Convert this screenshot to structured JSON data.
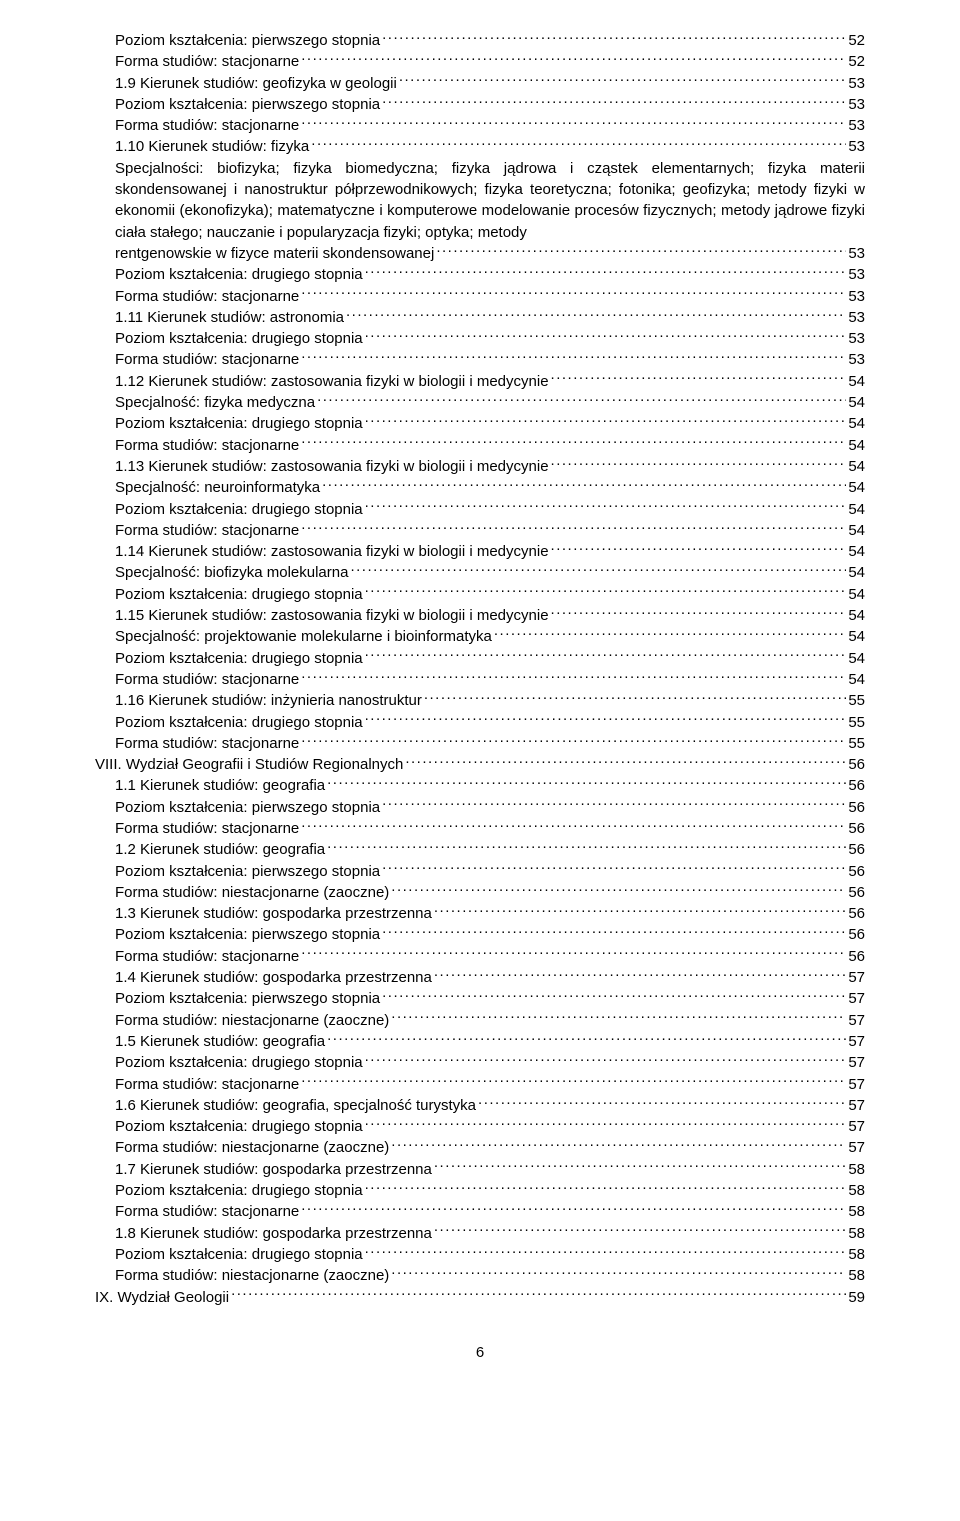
{
  "text_color": "#000000",
  "background_color": "#ffffff",
  "font_family": "Arial",
  "font_size_pt": 11,
  "page_number": "6",
  "wrap_entry": {
    "indent": 1,
    "head_prefix": "",
    "body_text": "Specjalności: biofizyka; fizyka biomedyczna; fizyka jądrowa i cząstek elementarnych; fizyka materii skondensowanej i nanostruktur półprzewodnikowych; fizyka teoretyczna; fotonika; geofizyka; metody fizyki w ekonomii (ekonofizyka); matematyczne i komputerowe modelowanie procesów fizycznych; metody jądrowe fizyki ciała stałego; nauczanie i popularyzacja fizyki; optyka; metody ",
    "last_line_text": "rentgenowskie w fizyce materii skondensowanej",
    "page": "53"
  },
  "entries": [
    {
      "indent": 1,
      "text": "Poziom kształcenia: pierwszego stopnia",
      "page": "52"
    },
    {
      "indent": 1,
      "text": "Forma studiów: stacjonarne",
      "page": "52"
    },
    {
      "indent": 1,
      "text": "1.9 Kierunek studiów: geofizyka w geologii",
      "page": "53"
    },
    {
      "indent": 1,
      "text": "Poziom kształcenia: pierwszego stopnia",
      "page": "53"
    },
    {
      "indent": 1,
      "text": "Forma studiów: stacjonarne",
      "page": "53"
    },
    {
      "indent": 1,
      "text": "1.10 Kierunek studiów: fizyka",
      "page": "53"
    },
    {
      "wrap": true
    },
    {
      "indent": 1,
      "text": "Poziom kształcenia: drugiego stopnia",
      "page": "53"
    },
    {
      "indent": 1,
      "text": "Forma studiów: stacjonarne",
      "page": "53"
    },
    {
      "indent": 1,
      "text": "1.11 Kierunek studiów: astronomia",
      "page": "53"
    },
    {
      "indent": 1,
      "text": "Poziom kształcenia: drugiego stopnia",
      "page": "53"
    },
    {
      "indent": 1,
      "text": "Forma studiów: stacjonarne",
      "page": "53"
    },
    {
      "indent": 1,
      "text": "1.12 Kierunek studiów: zastosowania fizyki w biologii i medycynie",
      "page": "54"
    },
    {
      "indent": 1,
      "text": "Specjalność: fizyka medyczna",
      "page": "54"
    },
    {
      "indent": 1,
      "text": "Poziom kształcenia: drugiego stopnia",
      "page": "54"
    },
    {
      "indent": 1,
      "text": "Forma studiów: stacjonarne",
      "page": "54"
    },
    {
      "indent": 1,
      "text": "1.13 Kierunek studiów: zastosowania fizyki w biologii i medycynie",
      "page": "54"
    },
    {
      "indent": 1,
      "text": "Specjalność: neuroinformatyka",
      "page": "54"
    },
    {
      "indent": 1,
      "text": "Poziom kształcenia: drugiego stopnia",
      "page": "54"
    },
    {
      "indent": 1,
      "text": "Forma studiów: stacjonarne",
      "page": "54"
    },
    {
      "indent": 1,
      "text": "1.14 Kierunek studiów: zastosowania fizyki w biologii i medycynie",
      "page": "54"
    },
    {
      "indent": 1,
      "text": "Specjalność: biofizyka molekularna",
      "page": "54"
    },
    {
      "indent": 1,
      "text": "Poziom kształcenia: drugiego stopnia",
      "page": "54"
    },
    {
      "indent": 1,
      "text": "1.15 Kierunek studiów: zastosowania fizyki w biologii i medycynie",
      "page": "54"
    },
    {
      "indent": 1,
      "text": "Specjalność: projektowanie molekularne i bioinformatyka",
      "page": "54"
    },
    {
      "indent": 1,
      "text": "Poziom kształcenia: drugiego stopnia",
      "page": "54"
    },
    {
      "indent": 1,
      "text": "Forma studiów: stacjonarne",
      "page": "54"
    },
    {
      "indent": 1,
      "text": "1.16 Kierunek studiów: inżynieria nanostruktur",
      "page": "55"
    },
    {
      "indent": 1,
      "text": "Poziom kształcenia: drugiego stopnia",
      "page": "55"
    },
    {
      "indent": 1,
      "text": "Forma studiów: stacjonarne",
      "page": "55"
    },
    {
      "indent": 0,
      "text": "VIII. Wydział Geografii i Studiów Regionalnych",
      "page": "56"
    },
    {
      "indent": 1,
      "text": "1.1 Kierunek studiów: geografia",
      "page": "56"
    },
    {
      "indent": 1,
      "text": "Poziom kształcenia: pierwszego stopnia",
      "page": "56"
    },
    {
      "indent": 1,
      "text": "Forma studiów: stacjonarne",
      "page": "56"
    },
    {
      "indent": 1,
      "text": "1.2 Kierunek studiów: geografia",
      "page": "56"
    },
    {
      "indent": 1,
      "text": "Poziom kształcenia: pierwszego stopnia",
      "page": "56"
    },
    {
      "indent": 1,
      "text": "Forma studiów: niestacjonarne (zaoczne)",
      "page": "56"
    },
    {
      "indent": 1,
      "text": "1.3 Kierunek studiów: gospodarka przestrzenna",
      "page": "56"
    },
    {
      "indent": 1,
      "text": "Poziom kształcenia: pierwszego stopnia",
      "page": "56"
    },
    {
      "indent": 1,
      "text": "Forma studiów: stacjonarne",
      "page": "56"
    },
    {
      "indent": 1,
      "text": "1.4 Kierunek studiów: gospodarka przestrzenna",
      "page": "57"
    },
    {
      "indent": 1,
      "text": "Poziom kształcenia: pierwszego stopnia",
      "page": "57"
    },
    {
      "indent": 1,
      "text": "Forma studiów: niestacjonarne (zaoczne)",
      "page": "57"
    },
    {
      "indent": 1,
      "text": "1.5 Kierunek studiów: geografia",
      "page": "57"
    },
    {
      "indent": 1,
      "text": "Poziom kształcenia: drugiego stopnia",
      "page": "57"
    },
    {
      "indent": 1,
      "text": "Forma studiów: stacjonarne",
      "page": "57"
    },
    {
      "indent": 1,
      "text": "1.6 Kierunek studiów: geografia, specjalność turystyka",
      "page": "57"
    },
    {
      "indent": 1,
      "text": "Poziom kształcenia: drugiego stopnia",
      "page": "57"
    },
    {
      "indent": 1,
      "text": "Forma studiów: niestacjonarne (zaoczne)",
      "page": "57"
    },
    {
      "indent": 1,
      "text": "1.7 Kierunek studiów: gospodarka przestrzenna",
      "page": "58"
    },
    {
      "indent": 1,
      "text": "Poziom kształcenia: drugiego stopnia",
      "page": "58"
    },
    {
      "indent": 1,
      "text": "Forma studiów: stacjonarne",
      "page": "58"
    },
    {
      "indent": 1,
      "text": "1.8 Kierunek studiów: gospodarka przestrzenna",
      "page": "58"
    },
    {
      "indent": 1,
      "text": "Poziom kształcenia: drugiego stopnia",
      "page": "58"
    },
    {
      "indent": 1,
      "text": "Forma studiów: niestacjonarne (zaoczne)",
      "page": "58"
    },
    {
      "indent": 0,
      "text": "IX. Wydział Geologii",
      "page": "59"
    }
  ]
}
